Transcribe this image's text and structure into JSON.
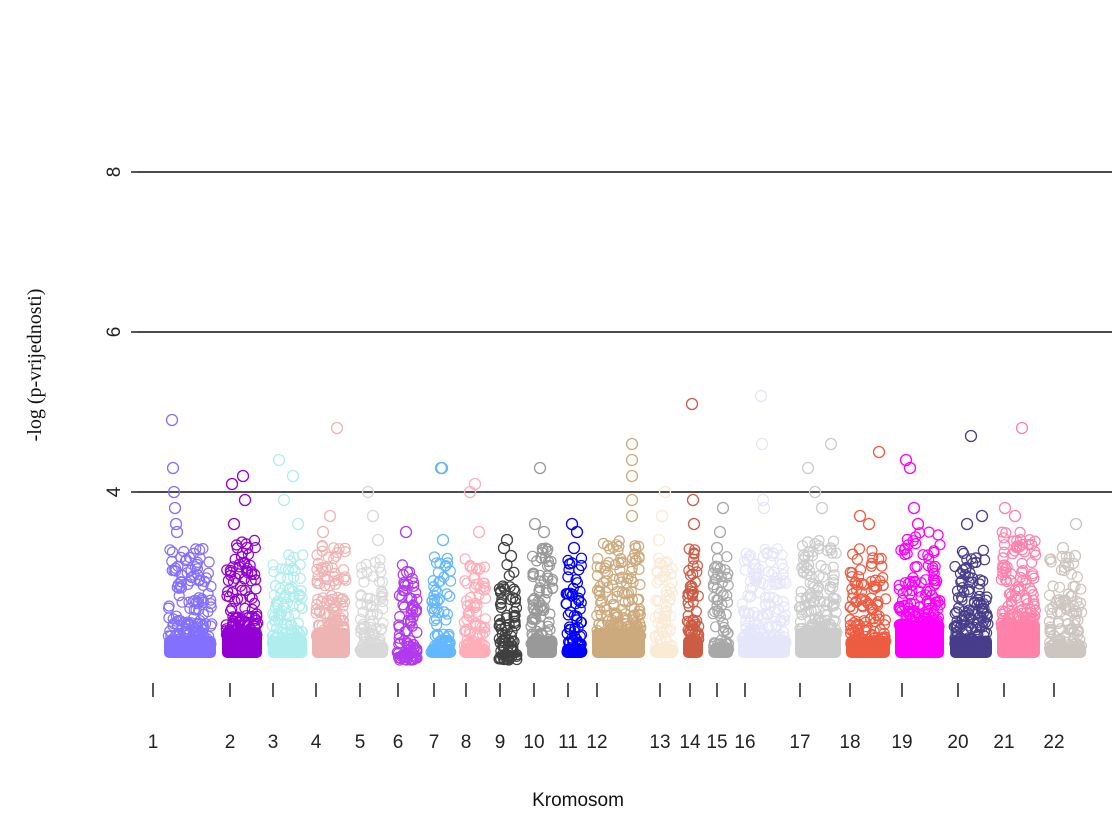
{
  "chart_data": {
    "type": "scatter",
    "subtype": "manhattan",
    "xlabel": "Kromosom",
    "ylabel": "-log (p-vrijednosti)",
    "ylim": [
      0,
      8
    ],
    "yticks": [
      4,
      6,
      8
    ],
    "reference_lines": [
      4,
      6,
      8
    ],
    "grid": false,
    "legend": "none",
    "marker": "open-circle",
    "chromosomes": [
      {
        "label": "1",
        "color": "#8470FF",
        "bulk_max": 2.7,
        "top_points": [
          4.9,
          4.3,
          4.0,
          3.8,
          3.6,
          3.5
        ]
      },
      {
        "label": "2",
        "color": "#9400D3",
        "bulk_max": 2.8,
        "top_points": [
          4.2,
          4.1,
          3.9,
          3.6,
          3.3
        ]
      },
      {
        "label": "3",
        "color": "#AEEEEE",
        "bulk_max": 2.7,
        "top_points": [
          4.4,
          4.2,
          3.9,
          3.6
        ]
      },
      {
        "label": "4",
        "color": "#EEB4B4",
        "bulk_max": 2.8,
        "top_points": [
          4.8,
          3.7,
          3.5
        ]
      },
      {
        "label": "5",
        "color": "#D9D9D9",
        "bulk_max": 2.6,
        "top_points": [
          4.0,
          3.7,
          3.4
        ]
      },
      {
        "label": "6",
        "color": "#B23AEE",
        "bulk_max": 2.5,
        "top_points": [
          3.5,
          3.0
        ]
      },
      {
        "label": "7",
        "color": "#63B8FF",
        "bulk_max": 2.6,
        "top_points": [
          4.3,
          4.3,
          3.4
        ]
      },
      {
        "label": "8",
        "color": "#FFAEB9",
        "bulk_max": 2.6,
        "top_points": [
          4.1,
          4.0,
          3.5
        ]
      },
      {
        "label": "9",
        "color": "#404040",
        "bulk_max": 2.5,
        "top_points": [
          3.4,
          3.3,
          3.2
        ]
      },
      {
        "label": "10",
        "color": "#999999",
        "bulk_max": 2.7,
        "top_points": [
          4.3,
          3.6,
          3.5
        ]
      },
      {
        "label": "11",
        "color": "#0000FF",
        "bulk_max": 2.6,
        "top_points": [
          3.6,
          3.5,
          3.3
        ]
      },
      {
        "label": "12",
        "color": "#CDAA7D",
        "bulk_max": 2.8,
        "top_points": [
          4.6,
          4.4,
          4.2,
          3.9,
          3.7
        ]
      },
      {
        "label": "13",
        "color": "#FAEBD7",
        "bulk_max": 2.6,
        "top_points": [
          4.0,
          3.7,
          3.4
        ]
      },
      {
        "label": "14",
        "color": "#CD5C45",
        "bulk_max": 2.7,
        "top_points": [
          5.1,
          3.9,
          3.6
        ]
      },
      {
        "label": "15",
        "color": "#A8A8A8",
        "bulk_max": 2.6,
        "top_points": [
          3.8,
          3.5,
          3.3
        ]
      },
      {
        "label": "16",
        "color": "#E6E6FA",
        "bulk_max": 2.7,
        "top_points": [
          5.2,
          4.6,
          3.9,
          3.8
        ]
      },
      {
        "label": "17",
        "color": "#CCCCCC",
        "bulk_max": 2.8,
        "top_points": [
          4.6,
          4.3,
          4.0,
          3.8
        ]
      },
      {
        "label": "18",
        "color": "#EE5C42",
        "bulk_max": 2.7,
        "top_points": [
          4.5,
          3.7,
          3.6
        ]
      },
      {
        "label": "19",
        "color": "#FF00FF",
        "bulk_max": 2.9,
        "top_points": [
          4.4,
          4.3,
          3.8,
          3.6
        ]
      },
      {
        "label": "20",
        "color": "#483D8B",
        "bulk_max": 2.7,
        "top_points": [
          4.7,
          3.7,
          3.6
        ]
      },
      {
        "label": "21",
        "color": "#FF82AB",
        "bulk_max": 2.9,
        "top_points": [
          4.8,
          3.8,
          3.7
        ]
      },
      {
        "label": "22",
        "color": "#CDC5BF",
        "bulk_max": 2.6,
        "top_points": [
          3.6,
          3.3,
          3.2
        ]
      }
    ]
  }
}
